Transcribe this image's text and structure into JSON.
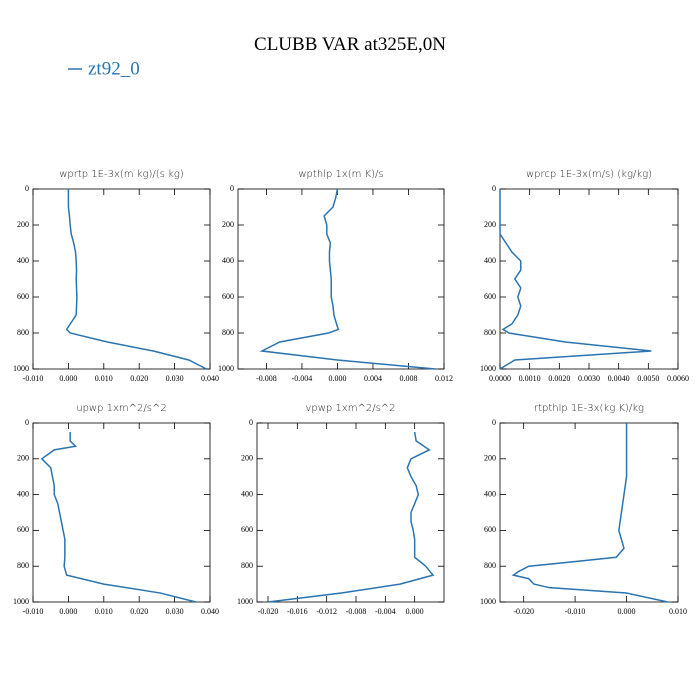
{
  "title": "CLUBB VAR at325E,0N",
  "legend": {
    "name": "zt92_0",
    "color": "#2a74b0"
  },
  "chart_data": [
    {
      "type": "line",
      "title": "wprtp   1E-3x(m kg)/(s kg)",
      "y": [
        0,
        50,
        100,
        150,
        200,
        250,
        300,
        350,
        400,
        450,
        500,
        550,
        600,
        650,
        700,
        750,
        780,
        800,
        850,
        900,
        950,
        1000
      ],
      "series": [
        {
          "color": "#2a74b0",
          "values": [
            0.0,
            0.0,
            0.0,
            0.0003,
            0.0005,
            0.0008,
            0.0015,
            0.002,
            0.0022,
            0.0023,
            0.0022,
            0.0023,
            0.0024,
            0.0023,
            0.0022,
            0.0005,
            -0.0005,
            0.0005,
            0.011,
            0.024,
            0.034,
            0.039
          ]
        }
      ],
      "xlim": [
        -0.01,
        0.04
      ],
      "ylim": [
        1000,
        0
      ],
      "xticks": [
        {
          "value": -0.01,
          "label": "-0.010"
        },
        {
          "value": 0,
          "label": "0.000"
        },
        {
          "value": 0.01,
          "label": "0.010"
        },
        {
          "value": 0.02,
          "label": "0.020"
        },
        {
          "value": 0.03,
          "label": "0.030"
        },
        {
          "value": 0.04,
          "label": "0.040"
        }
      ],
      "yticks": [
        0,
        200,
        400,
        600,
        800,
        1000
      ]
    },
    {
      "type": "line",
      "title": "wpthlp   1x(m K)/s",
      "y": [
        0,
        50,
        100,
        150,
        200,
        250,
        300,
        350,
        400,
        450,
        500,
        550,
        600,
        650,
        700,
        750,
        780,
        800,
        850,
        900,
        950,
        1000
      ],
      "series": [
        {
          "color": "#2a74b0",
          "values": [
            0.0,
            -0.0002,
            -0.0005,
            -0.0015,
            -0.0012,
            -0.0012,
            -0.0008,
            -0.0009,
            -0.0009,
            -0.0008,
            -0.0007,
            -0.0007,
            -0.0007,
            -0.0005,
            -0.0004,
            -0.0001,
            0.0001,
            -0.001,
            -0.0065,
            -0.0085,
            0.0,
            0.011
          ]
        }
      ],
      "xlim": [
        -0.0112,
        0.012
      ],
      "ylim": [
        1000,
        0
      ],
      "xticks": [
        {
          "value": -0.008,
          "label": "-0.008"
        },
        {
          "value": -0.004,
          "label": "-0.004"
        },
        {
          "value": 0,
          "label": "0.000"
        },
        {
          "value": 0.004,
          "label": "0.004"
        },
        {
          "value": 0.008,
          "label": "0.008"
        },
        {
          "value": 0.012,
          "label": "0.012"
        }
      ],
      "yticks": [
        0,
        200,
        400,
        600,
        800,
        1000
      ]
    },
    {
      "type": "line",
      "title": "wprcp   1E-3x(m/s) (kg/kg)",
      "y": [
        0,
        50,
        100,
        150,
        200,
        250,
        300,
        350,
        400,
        450,
        500,
        550,
        600,
        650,
        700,
        750,
        780,
        800,
        850,
        900,
        950,
        1000
      ],
      "series": [
        {
          "color": "#2a74b0",
          "values": [
            0,
            0,
            0,
            0,
            0,
            0,
            0.0002,
            0.0004,
            0.0007,
            0.0007,
            0.0005,
            0.0007,
            0.0006,
            0.0007,
            0.0006,
            0.0004,
            0.0001,
            0.0003,
            0.0022,
            0.0051,
            0.0005,
            0.0
          ]
        }
      ],
      "xlim": [
        0,
        0.006
      ],
      "ylim": [
        1000,
        0
      ],
      "xticks": [
        {
          "value": 0,
          "label": "0.0000"
        },
        {
          "value": 0.001,
          "label": "0.0010"
        },
        {
          "value": 0.002,
          "label": "0.0020"
        },
        {
          "value": 0.003,
          "label": "0.0030"
        },
        {
          "value": 0.004,
          "label": "0.0040"
        },
        {
          "value": 0.005,
          "label": "0.0050"
        },
        {
          "value": 0.006,
          "label": "0.0060"
        }
      ],
      "yticks": [
        0,
        200,
        400,
        600,
        800,
        1000
      ]
    },
    {
      "type": "line",
      "title": "upwp   1xm^2/s^2",
      "y": [
        50,
        100,
        130,
        150,
        200,
        250,
        300,
        350,
        400,
        450,
        500,
        550,
        600,
        650,
        700,
        750,
        800,
        850,
        900,
        950,
        1000
      ],
      "series": [
        {
          "color": "#2a74b0",
          "values": [
            0.0005,
            0.0005,
            0.002,
            -0.004,
            -0.0075,
            -0.005,
            -0.0045,
            -0.004,
            -0.004,
            -0.003,
            -0.0025,
            -0.002,
            -0.0015,
            -0.001,
            -0.001,
            -0.001,
            -0.0012,
            -0.0005,
            0.01,
            0.026,
            0.036
          ]
        }
      ],
      "xlim": [
        -0.01,
        0.04
      ],
      "ylim": [
        1000,
        0
      ],
      "xticks": [
        {
          "value": -0.01,
          "label": "-0.010"
        },
        {
          "value": 0,
          "label": "0.000"
        },
        {
          "value": 0.01,
          "label": "0.010"
        },
        {
          "value": 0.02,
          "label": "0.020"
        },
        {
          "value": 0.03,
          "label": "0.030"
        },
        {
          "value": 0.04,
          "label": "0.040"
        }
      ],
      "yticks": [
        0,
        200,
        400,
        600,
        800,
        1000
      ]
    },
    {
      "type": "line",
      "title": "vpwp   1xm^2/s^2",
      "y": [
        50,
        100,
        150,
        200,
        250,
        300,
        350,
        400,
        450,
        500,
        550,
        600,
        650,
        700,
        750,
        800,
        850,
        900,
        950,
        1000
      ],
      "series": [
        {
          "color": "#2a74b0",
          "values": [
            0.0,
            0.0002,
            0.002,
            -0.0005,
            -0.001,
            -0.0005,
            0.0002,
            0.0005,
            0.0,
            -0.0005,
            -0.0005,
            -0.0002,
            0.0,
            0.0,
            0.0,
            0.0015,
            0.0025,
            -0.002,
            -0.01,
            -0.02
          ]
        }
      ],
      "xlim": [
        -0.0215,
        0.004
      ],
      "ylim": [
        1000,
        0
      ],
      "xticks": [
        {
          "value": -0.02,
          "label": "-0.020"
        },
        {
          "value": -0.016,
          "label": "-0.016"
        },
        {
          "value": -0.012,
          "label": "-0.012"
        },
        {
          "value": -0.008,
          "label": "-0.008"
        },
        {
          "value": -0.004,
          "label": "-0.004"
        },
        {
          "value": 0,
          "label": "0.000"
        }
      ],
      "yticks": [
        0,
        200,
        400,
        600,
        800,
        1000
      ]
    },
    {
      "type": "line",
      "title": "rtpthlp   1E-3x(kg K)/kg",
      "y": [
        0,
        100,
        200,
        300,
        400,
        500,
        600,
        650,
        700,
        750,
        780,
        800,
        830,
        850,
        870,
        900,
        920,
        950,
        1000
      ],
      "series": [
        {
          "color": "#2a74b0",
          "values": [
            0,
            0,
            0,
            0,
            -0.0005,
            -0.001,
            -0.0015,
            -0.001,
            -0.0005,
            -0.002,
            -0.012,
            -0.019,
            -0.021,
            -0.022,
            -0.019,
            -0.018,
            -0.015,
            0.0,
            0.008
          ]
        }
      ],
      "xlim": [
        -0.0246,
        0.01
      ],
      "ylim": [
        1000,
        0
      ],
      "xticks": [
        {
          "value": -0.02,
          "label": "-0.020"
        },
        {
          "value": -0.01,
          "label": "-0.010"
        },
        {
          "value": 0,
          "label": "0.000"
        },
        {
          "value": 0.01,
          "label": "0.010"
        }
      ],
      "yticks": [
        0,
        200,
        400,
        600,
        800,
        1000
      ]
    }
  ]
}
